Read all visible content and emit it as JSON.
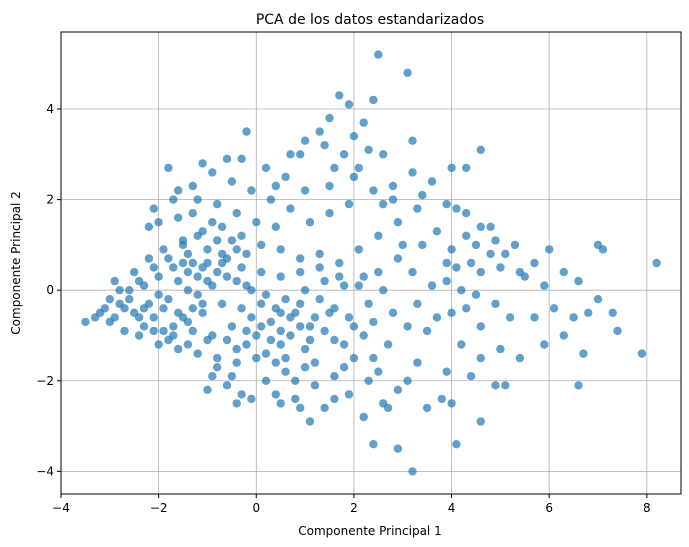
{
  "chart_data": {
    "type": "scatter",
    "title": "PCA de los datos estandarizados",
    "xlabel": "Componente Principal 1",
    "ylabel": "Componente Principal 2",
    "xlim": [
      -4,
      8.7
    ],
    "ylim": [
      -4.5,
      5.7
    ],
    "xticks": [
      -4,
      -2,
      0,
      2,
      4,
      6,
      8
    ],
    "yticks": [
      -4,
      -2,
      0,
      2,
      4
    ],
    "xtick_labels": [
      "−4",
      "−2",
      "0",
      "2",
      "4",
      "6",
      "8"
    ],
    "ytick_labels": [
      "−4",
      "−2",
      "0",
      "2",
      "4"
    ],
    "grid": true,
    "color": "#1f77b4",
    "alpha": 0.7,
    "points": [
      [
        2.5,
        5.2
      ],
      [
        3.1,
        4.8
      ],
      [
        1.7,
        4.3
      ],
      [
        1.9,
        4.1
      ],
      [
        2.4,
        4.2
      ],
      [
        1.5,
        3.8
      ],
      [
        2.2,
        3.7
      ],
      [
        2.0,
        3.4
      ],
      [
        1.3,
        3.5
      ],
      [
        1.0,
        3.3
      ],
      [
        2.6,
        3.0
      ],
      [
        3.2,
        3.3
      ],
      [
        -0.2,
        3.5
      ],
      [
        0.7,
        3.0
      ],
      [
        1.4,
        3.2
      ],
      [
        1.8,
        3.0
      ],
      [
        2.1,
        2.7
      ],
      [
        4.6,
        3.1
      ],
      [
        4.0,
        2.7
      ],
      [
        4.3,
        2.7
      ],
      [
        3.6,
        2.4
      ],
      [
        3.2,
        2.6
      ],
      [
        1.5,
        2.3
      ],
      [
        2.0,
        2.5
      ],
      [
        2.8,
        2.3
      ],
      [
        3.4,
        2.1
      ],
      [
        2.6,
        1.9
      ],
      [
        3.9,
        1.9
      ],
      [
        4.1,
        1.8
      ],
      [
        4.3,
        1.7
      ],
      [
        4.6,
        1.4
      ],
      [
        4.8,
        1.4
      ],
      [
        4.3,
        1.2
      ],
      [
        3.7,
        1.3
      ],
      [
        3.4,
        1.0
      ],
      [
        3.0,
        1.0
      ],
      [
        4.0,
        0.9
      ],
      [
        4.5,
        1.0
      ],
      [
        4.9,
        1.1
      ],
      [
        5.3,
        1.0
      ],
      [
        5.1,
        0.8
      ],
      [
        4.8,
        0.8
      ],
      [
        4.4,
        0.6
      ],
      [
        4.1,
        0.5
      ],
      [
        3.9,
        0.6
      ],
      [
        4.6,
        0.4
      ],
      [
        5.0,
        0.5
      ],
      [
        5.4,
        0.4
      ],
      [
        5.7,
        0.6
      ],
      [
        6.0,
        0.9
      ],
      [
        5.5,
        0.3
      ],
      [
        5.9,
        0.1
      ],
      [
        6.3,
        0.4
      ],
      [
        6.6,
        0.2
      ],
      [
        7.0,
        1.0
      ],
      [
        7.1,
        0.9
      ],
      [
        8.2,
        0.6
      ],
      [
        7.0,
        -0.2
      ],
      [
        7.3,
        -0.5
      ],
      [
        6.8,
        -0.5
      ],
      [
        6.5,
        -0.6
      ],
      [
        6.1,
        -0.4
      ],
      [
        5.7,
        -0.6
      ],
      [
        5.2,
        -0.6
      ],
      [
        4.9,
        -0.3
      ],
      [
        4.6,
        -0.8
      ],
      [
        4.3,
        -0.4
      ],
      [
        4.0,
        -0.5
      ],
      [
        3.7,
        -0.6
      ],
      [
        3.5,
        -0.9
      ],
      [
        4.2,
        -1.2
      ],
      [
        4.6,
        -1.5
      ],
      [
        5.0,
        -1.3
      ],
      [
        5.4,
        -1.5
      ],
      [
        5.9,
        -1.2
      ],
      [
        6.3,
        -1.0
      ],
      [
        6.7,
        -1.4
      ],
      [
        7.4,
        -0.9
      ],
      [
        7.9,
        -1.4
      ],
      [
        6.6,
        -2.1
      ],
      [
        5.1,
        -2.1
      ],
      [
        4.9,
        -2.1
      ],
      [
        4.4,
        -1.9
      ],
      [
        3.9,
        -1.8
      ],
      [
        3.3,
        -1.6
      ],
      [
        3.1,
        -2.0
      ],
      [
        3.8,
        -2.4
      ],
      [
        4.0,
        -2.5
      ],
      [
        4.6,
        -2.9
      ],
      [
        4.1,
        -3.4
      ],
      [
        3.2,
        -4.0
      ],
      [
        2.4,
        -3.4
      ],
      [
        2.9,
        -3.5
      ],
      [
        2.6,
        -2.5
      ],
      [
        2.3,
        -2.0
      ],
      [
        1.9,
        -2.3
      ],
      [
        1.4,
        -2.6
      ],
      [
        1.1,
        -2.9
      ],
      [
        0.8,
        -2.4
      ],
      [
        0.4,
        -2.3
      ],
      [
        -0.3,
        -2.3
      ],
      [
        -0.6,
        -2.1
      ],
      [
        -0.9,
        -1.9
      ],
      [
        -1.0,
        -2.2
      ],
      [
        0.2,
        -2.0
      ],
      [
        0.6,
        -1.8
      ],
      [
        1.2,
        -1.6
      ],
      [
        1.8,
        -1.7
      ],
      [
        2.4,
        -1.5
      ],
      [
        2.7,
        -1.2
      ],
      [
        2.2,
        -1.0
      ],
      [
        1.6,
        -1.1
      ],
      [
        1.0,
        -1.3
      ],
      [
        0.5,
        -1.2
      ],
      [
        0.0,
        -1.0
      ],
      [
        -0.4,
        -1.3
      ],
      [
        -0.8,
        -1.5
      ],
      [
        -1.2,
        -1.4
      ],
      [
        -1.6,
        -1.3
      ],
      [
        -2.0,
        -1.2
      ],
      [
        -2.4,
        -1.0
      ],
      [
        -2.7,
        -0.9
      ],
      [
        -3.0,
        -0.7
      ],
      [
        -3.3,
        -0.6
      ],
      [
        -3.5,
        -0.7
      ],
      [
        -3.1,
        -0.4
      ],
      [
        -2.8,
        -0.3
      ],
      [
        -2.5,
        -0.5
      ],
      [
        -2.1,
        -0.6
      ],
      [
        -1.7,
        -0.8
      ],
      [
        -1.3,
        -0.9
      ],
      [
        -0.9,
        -1.0
      ],
      [
        -0.5,
        -0.8
      ],
      [
        -0.1,
        -0.6
      ],
      [
        0.3,
        -0.7
      ],
      [
        0.7,
        -0.6
      ],
      [
        1.1,
        -0.8
      ],
      [
        1.5,
        -0.5
      ],
      [
        1.9,
        -0.6
      ],
      [
        2.3,
        -0.3
      ],
      [
        2.6,
        0.0
      ],
      [
        2.2,
        0.3
      ],
      [
        1.8,
        0.1
      ],
      [
        1.4,
        0.2
      ],
      [
        1.0,
        0.0
      ],
      [
        0.6,
        -0.2
      ],
      [
        0.2,
        -0.1
      ],
      [
        -0.2,
        0.1
      ],
      [
        -0.6,
        0.3
      ],
      [
        -1.0,
        0.2
      ],
      [
        -1.4,
        0.0
      ],
      [
        -1.8,
        -0.2
      ],
      [
        -2.2,
        -0.3
      ],
      [
        -2.6,
        0.0
      ],
      [
        -2.9,
        0.2
      ],
      [
        -2.5,
        0.4
      ],
      [
        -2.2,
        0.7
      ],
      [
        -1.9,
        0.9
      ],
      [
        -1.5,
        1.1
      ],
      [
        -1.1,
        1.3
      ],
      [
        -0.7,
        1.4
      ],
      [
        -0.3,
        1.2
      ],
      [
        0.1,
        1.0
      ],
      [
        0.5,
        0.9
      ],
      [
        0.9,
        0.7
      ],
      [
        1.3,
        0.8
      ],
      [
        1.7,
        0.6
      ],
      [
        2.1,
        0.9
      ],
      [
        2.5,
        1.2
      ],
      [
        2.9,
        1.5
      ],
      [
        3.3,
        1.8
      ],
      [
        2.8,
        2.0
      ],
      [
        2.4,
        2.2
      ],
      [
        1.9,
        1.9
      ],
      [
        1.5,
        1.7
      ],
      [
        1.1,
        1.5
      ],
      [
        0.7,
        1.8
      ],
      [
        0.3,
        2.0
      ],
      [
        -0.1,
        2.2
      ],
      [
        -0.5,
        2.4
      ],
      [
        -0.9,
        2.6
      ],
      [
        -1.3,
        2.3
      ],
      [
        -1.7,
        2.0
      ],
      [
        -2.1,
        1.8
      ],
      [
        -1.6,
        2.2
      ],
      [
        -1.2,
        2.0
      ],
      [
        -0.8,
        1.9
      ],
      [
        -0.4,
        1.7
      ],
      [
        0.0,
        1.5
      ],
      [
        0.4,
        1.4
      ],
      [
        -1.8,
        2.7
      ],
      [
        -1.1,
        2.8
      ],
      [
        -0.6,
        2.9
      ],
      [
        0.2,
        2.7
      ],
      [
        0.6,
        2.5
      ],
      [
        1.0,
        2.2
      ],
      [
        -2.2,
        1.4
      ],
      [
        -2.0,
        1.5
      ],
      [
        -1.6,
        1.6
      ],
      [
        -1.3,
        1.7
      ],
      [
        -0.9,
        1.5
      ],
      [
        -0.5,
        1.1
      ],
      [
        -0.2,
        0.8
      ],
      [
        -0.6,
        0.7
      ],
      [
        -1.0,
        0.9
      ],
      [
        -1.3,
        0.6
      ],
      [
        -1.7,
        0.5
      ],
      [
        -2.0,
        0.3
      ],
      [
        -2.3,
        0.1
      ],
      [
        -2.6,
        -0.2
      ],
      [
        -2.3,
        -0.8
      ],
      [
        -1.9,
        -0.9
      ],
      [
        -1.5,
        -0.6
      ],
      [
        -1.1,
        -0.5
      ],
      [
        -0.7,
        -0.3
      ],
      [
        -0.3,
        -0.4
      ],
      [
        0.1,
        -0.3
      ],
      [
        0.5,
        -0.5
      ],
      [
        0.9,
        -0.3
      ],
      [
        1.3,
        -0.2
      ],
      [
        -1.5,
        1.0
      ],
      [
        -1.2,
        1.2
      ],
      [
        -0.8,
        1.1
      ],
      [
        -0.4,
        0.9
      ],
      [
        -1.4,
        0.4
      ],
      [
        -1.1,
        0.5
      ],
      [
        -0.7,
        0.6
      ],
      [
        -0.9,
        0.1
      ],
      [
        -1.2,
        -0.1
      ],
      [
        -1.6,
        0.2
      ],
      [
        -1.9,
        -0.4
      ],
      [
        -1.6,
        -0.5
      ],
      [
        -1.3,
        -0.4
      ],
      [
        -2.4,
        -0.6
      ],
      [
        -2.1,
        -0.9
      ],
      [
        -1.8,
        -1.1
      ],
      [
        -1.4,
        -1.2
      ],
      [
        -1.0,
        -1.1
      ],
      [
        -0.6,
        -1.1
      ],
      [
        -0.2,
        -1.2
      ],
      [
        0.2,
        -1.4
      ],
      [
        0.6,
        -1.5
      ],
      [
        1.0,
        -1.7
      ],
      [
        0.4,
        -1.6
      ],
      [
        0.0,
        -1.5
      ],
      [
        -0.4,
        -1.6
      ],
      [
        -0.8,
        -1.7
      ],
      [
        -0.5,
        -1.9
      ],
      [
        0.8,
        -2.0
      ],
      [
        1.2,
        -2.1
      ],
      [
        1.6,
        -1.9
      ],
      [
        2.0,
        -1.5
      ],
      [
        2.5,
        -1.8
      ],
      [
        2.9,
        -2.2
      ],
      [
        3.5,
        -2.6
      ],
      [
        2.7,
        -2.6
      ],
      [
        2.2,
        -2.8
      ],
      [
        1.6,
        -2.4
      ],
      [
        0.9,
        -2.6
      ],
      [
        0.5,
        -2.5
      ],
      [
        -0.1,
        -2.4
      ],
      [
        -0.4,
        -2.5
      ],
      [
        0.3,
        -1.1
      ],
      [
        0.7,
        -1.0
      ],
      [
        1.1,
        -1.1
      ],
      [
        1.4,
        -0.9
      ],
      [
        1.8,
        -1.2
      ],
      [
        0.9,
        -0.8
      ],
      [
        0.5,
        -0.9
      ],
      [
        0.1,
        -0.8
      ],
      [
        -0.2,
        -0.9
      ],
      [
        0.4,
        -0.4
      ],
      [
        0.8,
        -0.5
      ],
      [
        1.2,
        -0.6
      ],
      [
        1.6,
        -0.4
      ],
      [
        2.0,
        -0.8
      ],
      [
        2.4,
        -0.7
      ],
      [
        2.8,
        -0.5
      ],
      [
        3.1,
        -0.8
      ],
      [
        3.3,
        -0.3
      ],
      [
        -3.2,
        -0.5
      ],
      [
        -2.9,
        -0.6
      ],
      [
        -2.7,
        -0.4
      ],
      [
        -3.0,
        -0.2
      ],
      [
        -2.8,
        0.0
      ],
      [
        -2.4,
        0.2
      ],
      [
        -2.1,
        0.5
      ],
      [
        -1.8,
        0.7
      ],
      [
        -1.4,
        0.8
      ],
      [
        -1.0,
        0.6
      ],
      [
        -0.7,
        0.8
      ],
      [
        -0.3,
        0.5
      ],
      [
        0.1,
        0.4
      ],
      [
        0.5,
        0.3
      ],
      [
        0.9,
        0.4
      ],
      [
        1.3,
        0.5
      ],
      [
        1.7,
        0.3
      ],
      [
        2.1,
        0.1
      ],
      [
        2.5,
        0.4
      ],
      [
        2.9,
        0.7
      ],
      [
        3.2,
        0.4
      ],
      [
        3.6,
        0.1
      ],
      [
        3.9,
        0.2
      ],
      [
        4.2,
        0.0
      ],
      [
        4.5,
        -0.1
      ],
      [
        0.9,
        3.0
      ],
      [
        1.6,
        2.7
      ],
      [
        2.3,
        3.1
      ],
      [
        -0.3,
        2.9
      ],
      [
        0.4,
        2.3
      ],
      [
        -1.1,
        -0.3
      ],
      [
        -1.4,
        -0.7
      ],
      [
        -1.7,
        -1.0
      ],
      [
        -2.0,
        -0.1
      ],
      [
        -2.3,
        -0.4
      ],
      [
        -1.5,
        0.6
      ],
      [
        -1.2,
        0.3
      ],
      [
        -0.8,
        0.4
      ],
      [
        -0.4,
        0.2
      ],
      [
        -0.1,
        0.0
      ]
    ]
  }
}
